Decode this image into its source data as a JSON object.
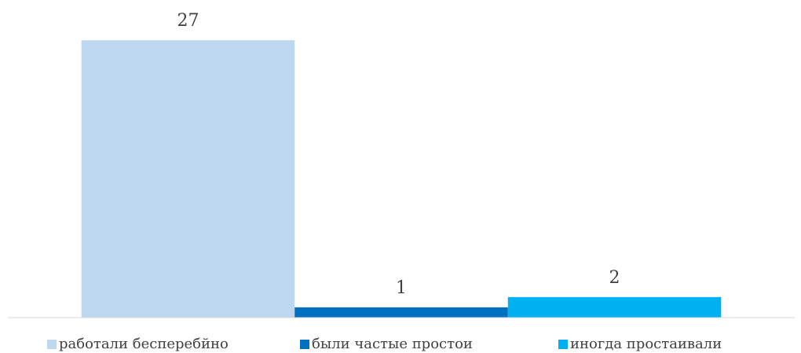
{
  "chart_data": {
    "type": "bar",
    "categories": [
      null
    ],
    "series": [
      {
        "name": "работали бесперебйно",
        "color": "#bdd7ee",
        "values": [
          27
        ]
      },
      {
        "name": "были частые простои",
        "color": "#0070c0",
        "values": [
          1
        ]
      },
      {
        "name": "иногда простаивали",
        "color": "#00b0f0",
        "values": [
          2
        ]
      }
    ],
    "ylim": [
      0,
      30
    ],
    "legend": "bottom"
  }
}
